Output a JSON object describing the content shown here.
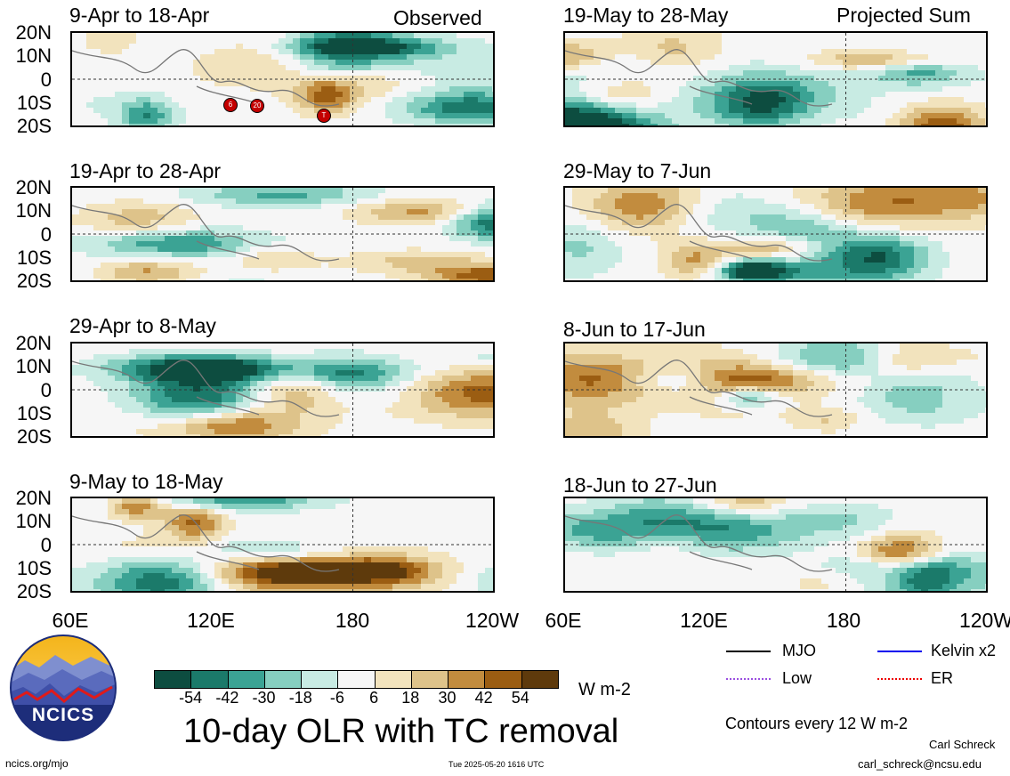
{
  "header": {
    "observed_label": "Observed",
    "projected_label": "Projected Sum"
  },
  "panels": {
    "observed": [
      {
        "title": "9-Apr to 18-Apr"
      },
      {
        "title": "19-Apr to 28-Apr"
      },
      {
        "title": "29-Apr to 8-May"
      },
      {
        "title": "9-May to 18-May"
      }
    ],
    "projected": [
      {
        "title": "19-May to 28-May"
      },
      {
        "title": "29-May to 7-Jun"
      },
      {
        "title": "8-Jun to 17-Jun"
      },
      {
        "title": "18-Jun to 27-Jun"
      }
    ]
  },
  "axes": {
    "lat_labels": [
      "20N",
      "10N",
      "0",
      "10S",
      "20S"
    ],
    "lon_labels_left": [
      "60E",
      "120E",
      "180",
      "120W"
    ],
    "lon_labels_right": [
      "60E",
      "120E",
      "180",
      "120W"
    ]
  },
  "tc_markers": [
    "6",
    "20",
    "T"
  ],
  "colorbar": {
    "tick_labels": [
      "-54",
      "-42",
      "-30",
      "-18",
      "-6",
      "6",
      "18",
      "30",
      "42",
      "54"
    ],
    "unit": "W m-2",
    "colors": [
      "#0d4d40",
      "#1b7a6a",
      "#3ba394",
      "#86cfc0",
      "#c8ebe3",
      "#f6f6f6",
      "#f2e3bd",
      "#dec38a",
      "#c28c3e",
      "#9b5d12",
      "#5e3a0c"
    ]
  },
  "main_title": "10-day OLR with TC removal",
  "legend": {
    "items": [
      {
        "label": "MJO",
        "color": "#000000"
      },
      {
        "label": "Kelvin x2",
        "color": "#0000ee"
      },
      {
        "label": "Low",
        "color": "#9a4fe0"
      },
      {
        "label": "ER",
        "color": "#ee0000"
      }
    ],
    "contour_note": "Contours every 12 W m-2"
  },
  "logo": {
    "text": "NCICS"
  },
  "footer": {
    "left": "ncics.org/mjo",
    "center": "Tue 2025-05-20 1616 UTC",
    "author": "Carl Schreck",
    "email": "carl_schreck@ncsu.edu"
  }
}
